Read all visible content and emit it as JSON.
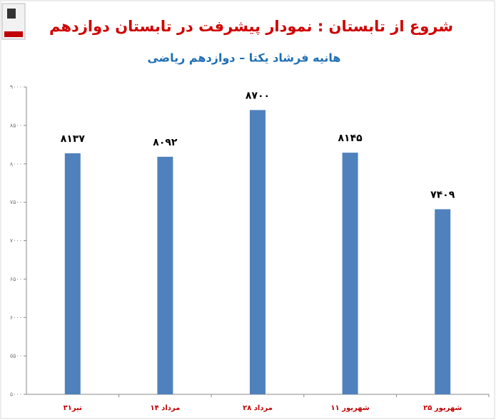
{
  "chart_data": {
    "type": "bar",
    "title": "شروع از تابستان : نمودار پیشرفت در تابستان دوازدهم",
    "subtitle": "هانیه فرشاد یکتا – دوازدهم ریاضی",
    "categories": [
      "۳۱تیر",
      "۱۴ مرداد",
      "۲۸ مرداد",
      "۱۱ شهریور",
      "۲۵ شهریور"
    ],
    "values": [
      8137,
      8092,
      8700,
      8145,
      7409
    ],
    "value_labels": [
      "۸۱۳۷",
      "۸۰۹۲",
      "۸۷۰۰",
      "۸۱۴۵",
      "۷۴۰۹"
    ],
    "color": "#4f81bd",
    "ylim": [
      5000,
      9000
    ],
    "yticks": [
      {
        "value": 5000,
        "label": "۵۰۰۰"
      },
      {
        "value": 5500,
        "label": "۵۵۰۰"
      },
      {
        "value": 6000,
        "label": "۶۰۰۰"
      },
      {
        "value": 6500,
        "label": "۶۵۰۰"
      },
      {
        "value": 7000,
        "label": "۷۰۰۰"
      },
      {
        "value": 7500,
        "label": "۷۵۰۰"
      },
      {
        "value": 8000,
        "label": "۸۰۰۰"
      },
      {
        "value": 8500,
        "label": "۸۵۰۰"
      },
      {
        "value": 9000,
        "label": "۹۰۰۰"
      }
    ],
    "grid": false
  }
}
